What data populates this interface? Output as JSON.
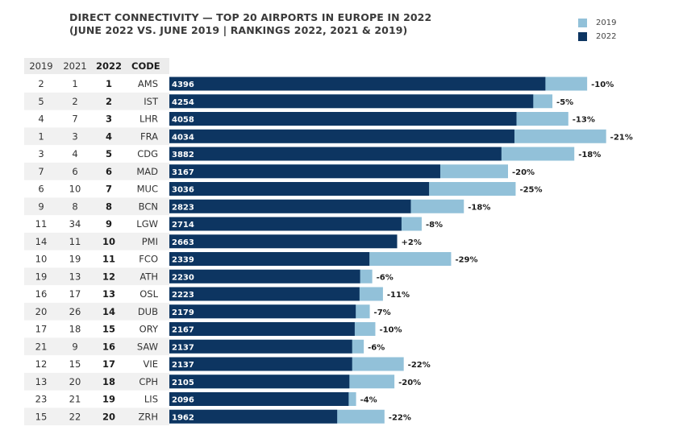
{
  "chart_data": {
    "type": "bar",
    "orientation": "horizontal",
    "title_line1": "DIRECT CONNECTIVITY — TOP 20 AIRPORTS IN EUROPE IN 2022",
    "title_line2": "(JUNE 2022 VS. JUNE 2019 | RANKINGS 2022, 2021 & 2019)",
    "legend": [
      {
        "name": "2019",
        "color": "#92c1d9"
      },
      {
        "name": "2022",
        "color": "#0d3561"
      }
    ],
    "columns": [
      "2019",
      "2021",
      "2022",
      "CODE"
    ],
    "xlim": [
      0,
      5750
    ],
    "rows": [
      {
        "r2019": "2",
        "r2021": "1",
        "r2022": "1",
        "code": "AMS",
        "v2022": 4396,
        "v2022_label": "4396",
        "v2019": 4884,
        "change": "-10%"
      },
      {
        "r2019": "5",
        "r2021": "2",
        "r2022": "2",
        "code": "IST",
        "v2022": 4254,
        "v2022_label": "4254",
        "v2019": 4478,
        "change": "-5%"
      },
      {
        "r2019": "4",
        "r2021": "7",
        "r2022": "3",
        "code": "LHR",
        "v2022": 4058,
        "v2022_label": "4058",
        "v2019": 4664,
        "change": "-13%"
      },
      {
        "r2019": "1",
        "r2021": "3",
        "r2022": "4",
        "code": "FRA",
        "v2022": 4034,
        "v2022_label": "4034",
        "v2019": 5106,
        "change": "-21%"
      },
      {
        "r2019": "3",
        "r2021": "4",
        "r2022": "5",
        "code": "CDG",
        "v2022": 3882,
        "v2022_label": "3882",
        "v2019": 4734,
        "change": "-18%"
      },
      {
        "r2019": "7",
        "r2021": "6",
        "r2022": "6",
        "code": "MAD",
        "v2022": 3167,
        "v2022_label": "3167",
        "v2019": 3959,
        "change": "-20%"
      },
      {
        "r2019": "6",
        "r2021": "10",
        "r2022": "7",
        "code": "MUC",
        "v2022": 3036,
        "v2022_label": "3036",
        "v2019": 4048,
        "change": "-25%"
      },
      {
        "r2019": "9",
        "r2021": "8",
        "r2022": "8",
        "code": "BCN",
        "v2022": 2823,
        "v2022_label": "2823",
        "v2019": 3443,
        "change": "-18%"
      },
      {
        "r2019": "11",
        "r2021": "34",
        "r2022": "9",
        "code": "LGW",
        "v2022": 2714,
        "v2022_label": "2714",
        "v2019": 2950,
        "change": "-8%"
      },
      {
        "r2019": "14",
        "r2021": "11",
        "r2022": "10",
        "code": "PMI",
        "v2022": 2663,
        "v2022_label": "2663",
        "v2019": 2611,
        "change": "+2%"
      },
      {
        "r2019": "10",
        "r2021": "19",
        "r2022": "11",
        "code": "FCO",
        "v2022": 2339,
        "v2022_label": "2339",
        "v2019": 3294,
        "change": "-29%"
      },
      {
        "r2019": "19",
        "r2021": "13",
        "r2022": "12",
        "code": "ATH",
        "v2022": 2230,
        "v2022_label": "2230",
        "v2019": 2372,
        "change": "-6%"
      },
      {
        "r2019": "16",
        "r2021": "17",
        "r2022": "13",
        "code": "OSL",
        "v2022": 2223,
        "v2022_label": "2223",
        "v2019": 2497,
        "change": "-11%"
      },
      {
        "r2019": "20",
        "r2021": "26",
        "r2022": "14",
        "code": "DUB",
        "v2022": 2179,
        "v2022_label": "2179",
        "v2019": 2343,
        "change": "-7%"
      },
      {
        "r2019": "17",
        "r2021": "18",
        "r2022": "15",
        "code": "ORY",
        "v2022": 2167,
        "v2022_label": "2167",
        "v2019": 2408,
        "change": "-10%"
      },
      {
        "r2019": "21",
        "r2021": "9",
        "r2022": "16",
        "code": "SAW",
        "v2022": 2137,
        "v2022_label": "2137",
        "v2019": 2273,
        "change": "-6%"
      },
      {
        "r2019": "12",
        "r2021": "15",
        "r2022": "17",
        "code": "VIE",
        "v2022": 2137,
        "v2022_label": "2137",
        "v2019": 2740,
        "change": "-22%"
      },
      {
        "r2019": "13",
        "r2021": "20",
        "r2022": "18",
        "code": "CPH",
        "v2022": 2105,
        "v2022_label": "2105",
        "v2019": 2631,
        "change": "-20%"
      },
      {
        "r2019": "23",
        "r2021": "21",
        "r2022": "19",
        "code": "LIS",
        "v2022": 2096,
        "v2022_label": "2096",
        "v2019": 2183,
        "change": "-4%"
      },
      {
        "r2019": "15",
        "r2021": "22",
        "r2022": "20",
        "code": "ZRH",
        "v2022": 1962,
        "v2022_label": "1962",
        "v2019": 2515,
        "change": "-22%"
      }
    ]
  }
}
